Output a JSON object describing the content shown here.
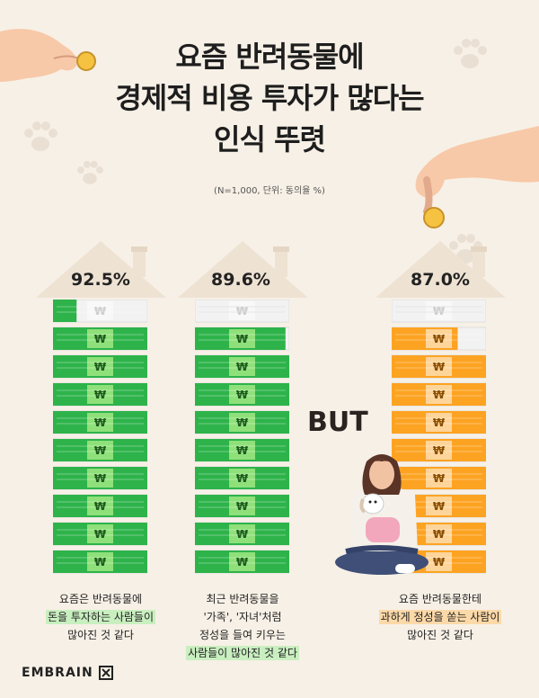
{
  "title_lines": [
    "요즘 반려동물에",
    "경제적 비용 투자가 많다는",
    "인식 뚜렷"
  ],
  "subtitle": "(N=1,000, 단위: 동의율 %)",
  "but_label": "BUT",
  "brand": "EMBRAIN",
  "currency_symbol": "₩",
  "colors": {
    "green": "#2db34a",
    "green_light": "#8fe07a",
    "orange": "#fda322",
    "orange_light": "#fdd59a",
    "empty": "#f2f2f2"
  },
  "chart_data": [
    {
      "type": "bar",
      "values": [
        92.5
      ],
      "value_label": "92.5%",
      "ylim": [
        0,
        100
      ],
      "color": "green",
      "caption_lines": [
        "요즘은 반려동물에",
        "돈을 투자하는 사람들이",
        "많아진 것 같다"
      ],
      "highlight_lines": [
        1
      ]
    },
    {
      "type": "bar",
      "values": [
        89.6
      ],
      "value_label": "89.6%",
      "ylim": [
        0,
        100
      ],
      "color": "green",
      "caption_lines": [
        "최근 반려동물을",
        "'가족', '자녀'처럼",
        "정성을 들여 키우는",
        "사람들이 많아진 것 같다"
      ],
      "highlight_lines": [
        3
      ]
    },
    {
      "type": "bar",
      "values": [
        87.0
      ],
      "value_label": "87.0%",
      "ylim": [
        0,
        100
      ],
      "color": "orange",
      "caption_lines": [
        "요즘 반려동물한테",
        "과하게 정성을 쏟는 사람이",
        "많아진 것 같다"
      ],
      "highlight_lines": [
        1
      ]
    }
  ]
}
